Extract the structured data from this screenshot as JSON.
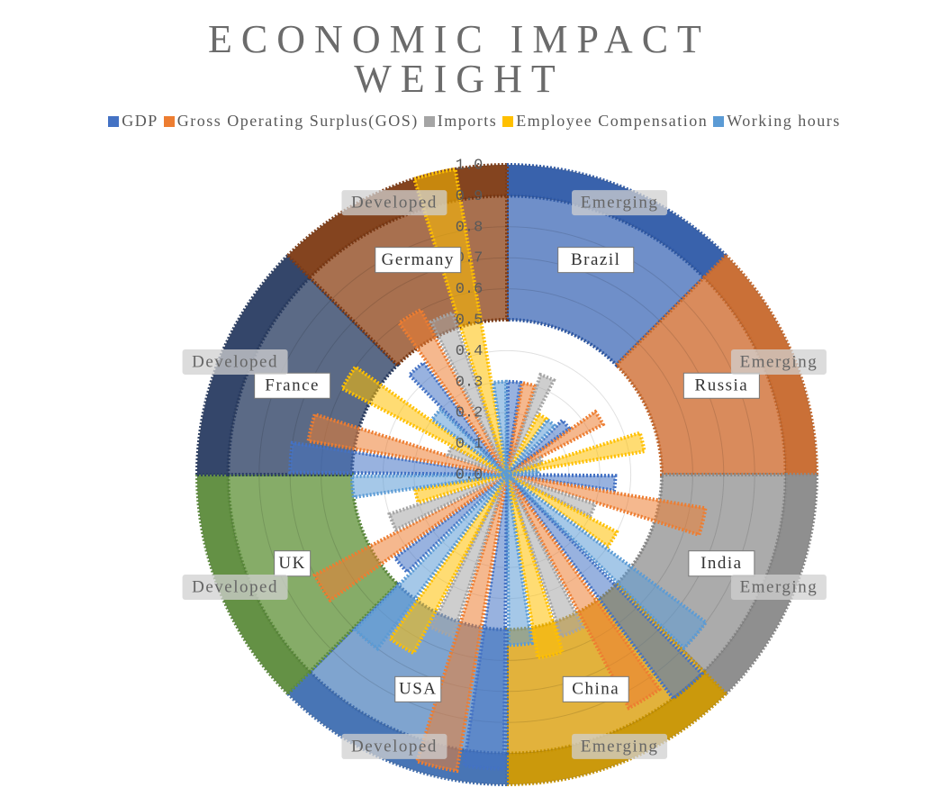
{
  "chart_data": {
    "type": "polar_bar",
    "title": "ECONOMIC IMPACT WEIGHT",
    "categories": [
      "Brazil",
      "Russia",
      "India",
      "China",
      "USA",
      "UK",
      "France",
      "Germany"
    ],
    "groups": [
      "Emerging",
      "Emerging",
      "Emerging",
      "Emerging",
      "Developed",
      "Developed",
      "Developed",
      "Developed"
    ],
    "category_colors": [
      "#6f8fc9",
      "#d98b5c",
      "#ababab",
      "#e2b23c",
      "#7fa4cf",
      "#86ac68",
      "#5b6a86",
      "#a8704f"
    ],
    "group_colors": [
      "#2f5aa8",
      "#c8692d",
      "#8a8a8a",
      "#c99400",
      "#3f6eb2",
      "#5c8c3c",
      "#2a3d63",
      "#7e3a14"
    ],
    "series": [
      {
        "name": "GDP",
        "color": "#4472c4",
        "values": [
          0.3,
          0.25,
          0.35,
          0.9,
          0.95,
          0.45,
          0.7,
          0.45
        ]
      },
      {
        "name": "Gross Operating Surplus(GOS)",
        "color": "#ed7d31",
        "values": [
          0.3,
          0.35,
          0.65,
          0.85,
          0.97,
          0.7,
          0.65,
          0.6
        ]
      },
      {
        "name": "Imports",
        "color": "#a5a5a5",
        "values": [
          0.34,
          0.12,
          0.3,
          0.55,
          0.55,
          0.4,
          0.2,
          0.55
        ]
      },
      {
        "name": "Employee Compensation",
        "color": "#ffc000",
        "values": [
          0.22,
          0.45,
          0.4,
          0.6,
          0.65,
          0.3,
          0.6,
          1.0
        ]
      },
      {
        "name": "Working hours",
        "color": "#5b9bd5",
        "values": [
          0.22,
          0.1,
          0.8,
          0.55,
          0.7,
          0.5,
          0.3,
          0.3
        ]
      }
    ],
    "rlim": [
      0,
      1
    ],
    "rticks": [
      {
        "value": 0,
        "label": "0.0"
      },
      0.1,
      0.2,
      0.3,
      0.4,
      0.5,
      0.6,
      0.7,
      0.8,
      0.9,
      {
        "value": 1,
        "label": "1.0"
      }
    ],
    "grid": true
  }
}
